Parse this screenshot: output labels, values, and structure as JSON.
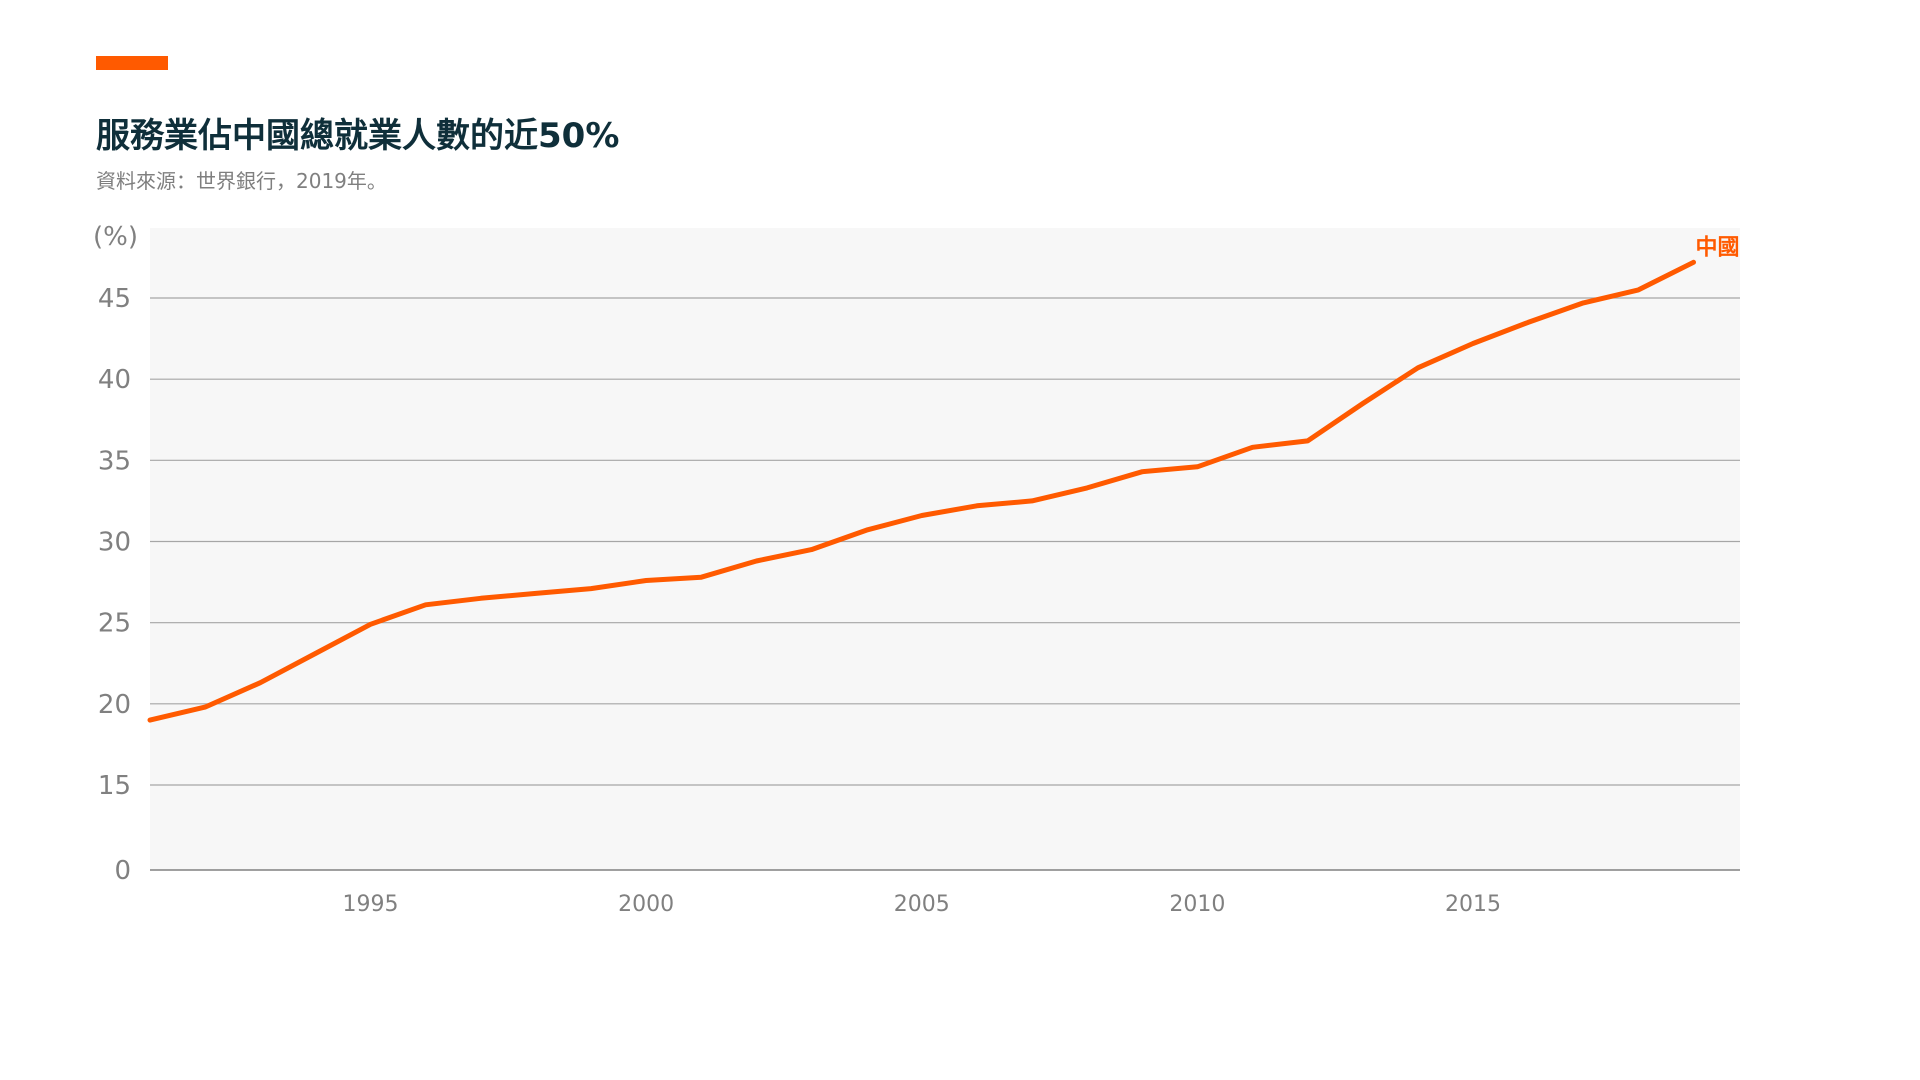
{
  "header": {
    "title": "服務業佔中國總就業人數的近50%",
    "subtitle": "資料來源：世界銀行，2019年。"
  },
  "colors": {
    "accent": "#ff5a00",
    "line": "#ff5a00",
    "plot_bg": "#f7f7f7",
    "grid": "#a6a6a6",
    "title": "#0f2f3a",
    "muted": "#808080"
  },
  "chart_data": {
    "type": "line",
    "unit_label": "(%)",
    "ylim": [
      0,
      48
    ],
    "xlim": [
      1991,
      2020
    ],
    "y_ticks": [
      {
        "value": 0,
        "label": "0"
      },
      {
        "value": 15,
        "label": "15"
      },
      {
        "value": 20,
        "label": "20"
      },
      {
        "value": 25,
        "label": "25"
      },
      {
        "value": 30,
        "label": "30"
      },
      {
        "value": 35,
        "label": "35"
      },
      {
        "value": 40,
        "label": "40"
      },
      {
        "value": 45,
        "label": "45"
      }
    ],
    "x_ticks": [
      {
        "value": 1995,
        "label": "1995"
      },
      {
        "value": 2000,
        "label": "2000"
      },
      {
        "value": 2005,
        "label": "2005"
      },
      {
        "value": 2010,
        "label": "2010"
      },
      {
        "value": 2015,
        "label": "2015"
      }
    ],
    "grid": true,
    "y_axis_break": "between 0 and 15",
    "series": [
      {
        "name": "中國",
        "x": [
          1991,
          1992,
          1993,
          1994,
          1995,
          1996,
          1997,
          1998,
          1999,
          2000,
          2001,
          2002,
          2003,
          2004,
          2005,
          2006,
          2007,
          2008,
          2009,
          2010,
          2011,
          2012,
          2013,
          2014,
          2015,
          2016,
          2017,
          2018,
          2019
        ],
        "values": [
          19.0,
          19.8,
          21.3,
          23.1,
          24.9,
          26.1,
          26.5,
          26.8,
          27.1,
          27.6,
          27.8,
          28.8,
          29.5,
          30.7,
          31.6,
          32.2,
          32.5,
          33.3,
          34.3,
          34.6,
          35.8,
          36.2,
          38.5,
          40.7,
          42.2,
          43.5,
          44.7,
          45.5,
          47.2
        ]
      }
    ]
  }
}
